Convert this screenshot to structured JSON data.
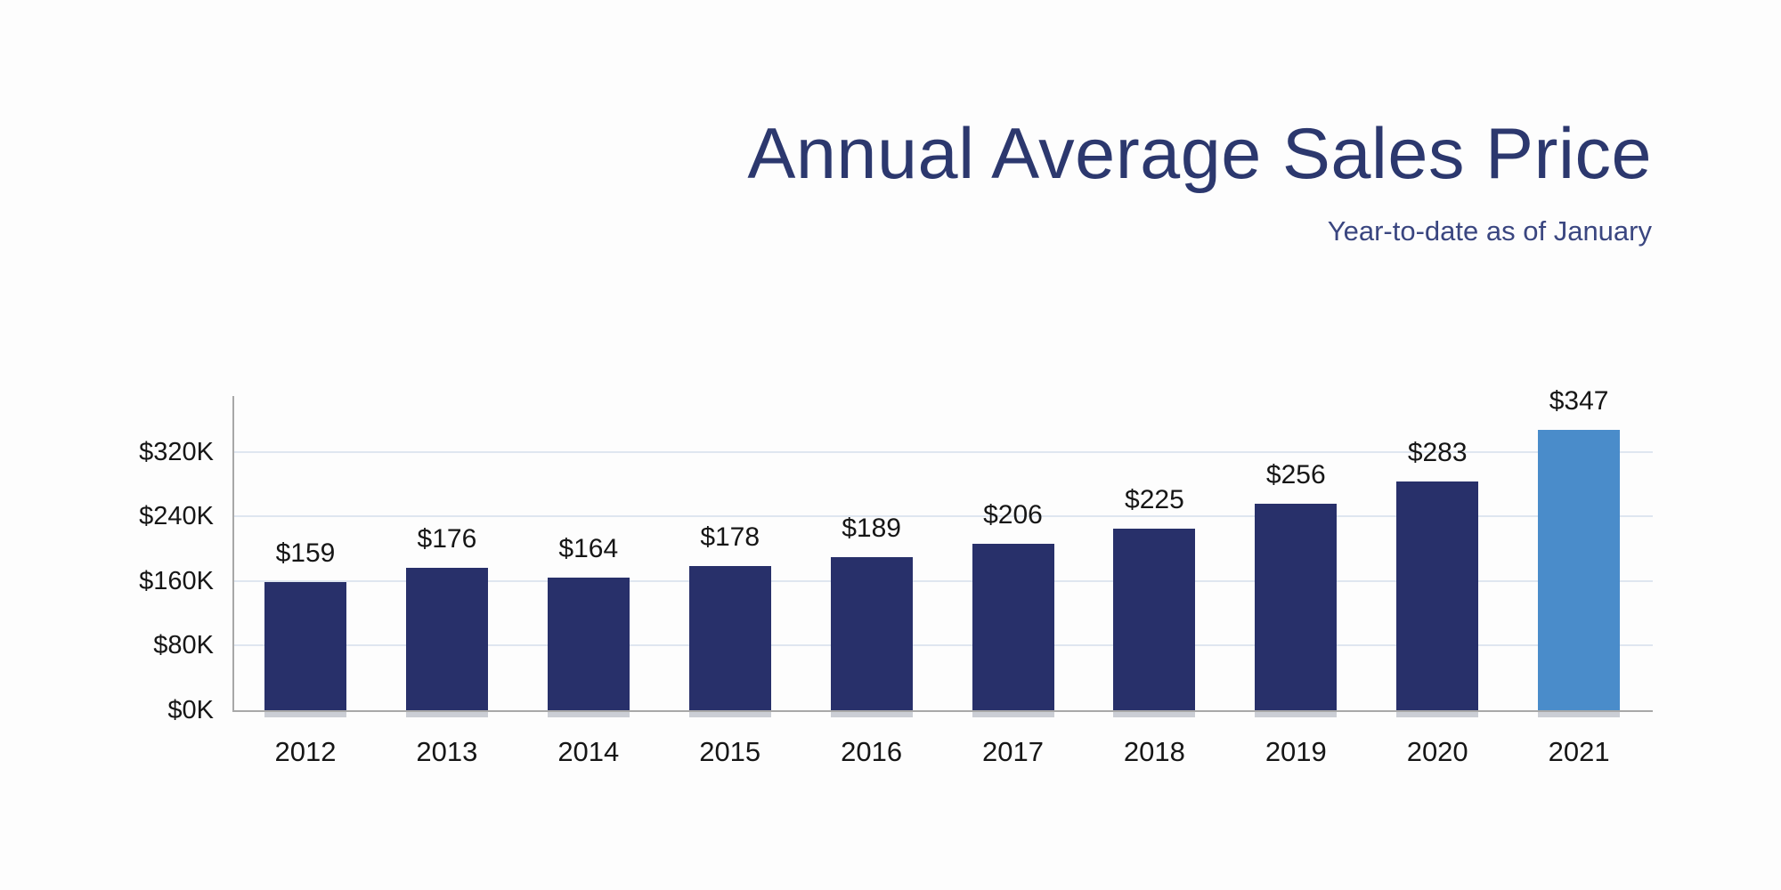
{
  "chart_data": {
    "type": "bar",
    "title": "Annual Average Sales Price",
    "subtitle": "Year-to-date as of January",
    "categories": [
      "2012",
      "2013",
      "2014",
      "2015",
      "2016",
      "2017",
      "2018",
      "2019",
      "2020",
      "2021"
    ],
    "values": [
      159,
      176,
      164,
      178,
      189,
      206,
      225,
      256,
      283,
      347
    ],
    "value_labels": [
      "$159",
      "$176",
      "$164",
      "$178",
      "$189",
      "$206",
      "$225",
      "$256",
      "$283",
      "$347"
    ],
    "value_unit": "thousands of dollars",
    "y_ticks": [
      0,
      80,
      160,
      240,
      320
    ],
    "y_tick_labels": [
      "$0K",
      "$80K",
      "$160K",
      "$240K",
      "$320K"
    ],
    "ylim": [
      0,
      352
    ],
    "grid": true,
    "legend": "none",
    "highlight_index": 9,
    "colors": {
      "bar": "#28306a",
      "bar_highlight": "#4a8cca",
      "gridline": "#dfe6f0",
      "axis": "#a8a8a8",
      "bar_shadow": "#9aa0ad",
      "title": "#2c386e",
      "subtitle": "#3a4680",
      "label_text": "#161616"
    }
  }
}
